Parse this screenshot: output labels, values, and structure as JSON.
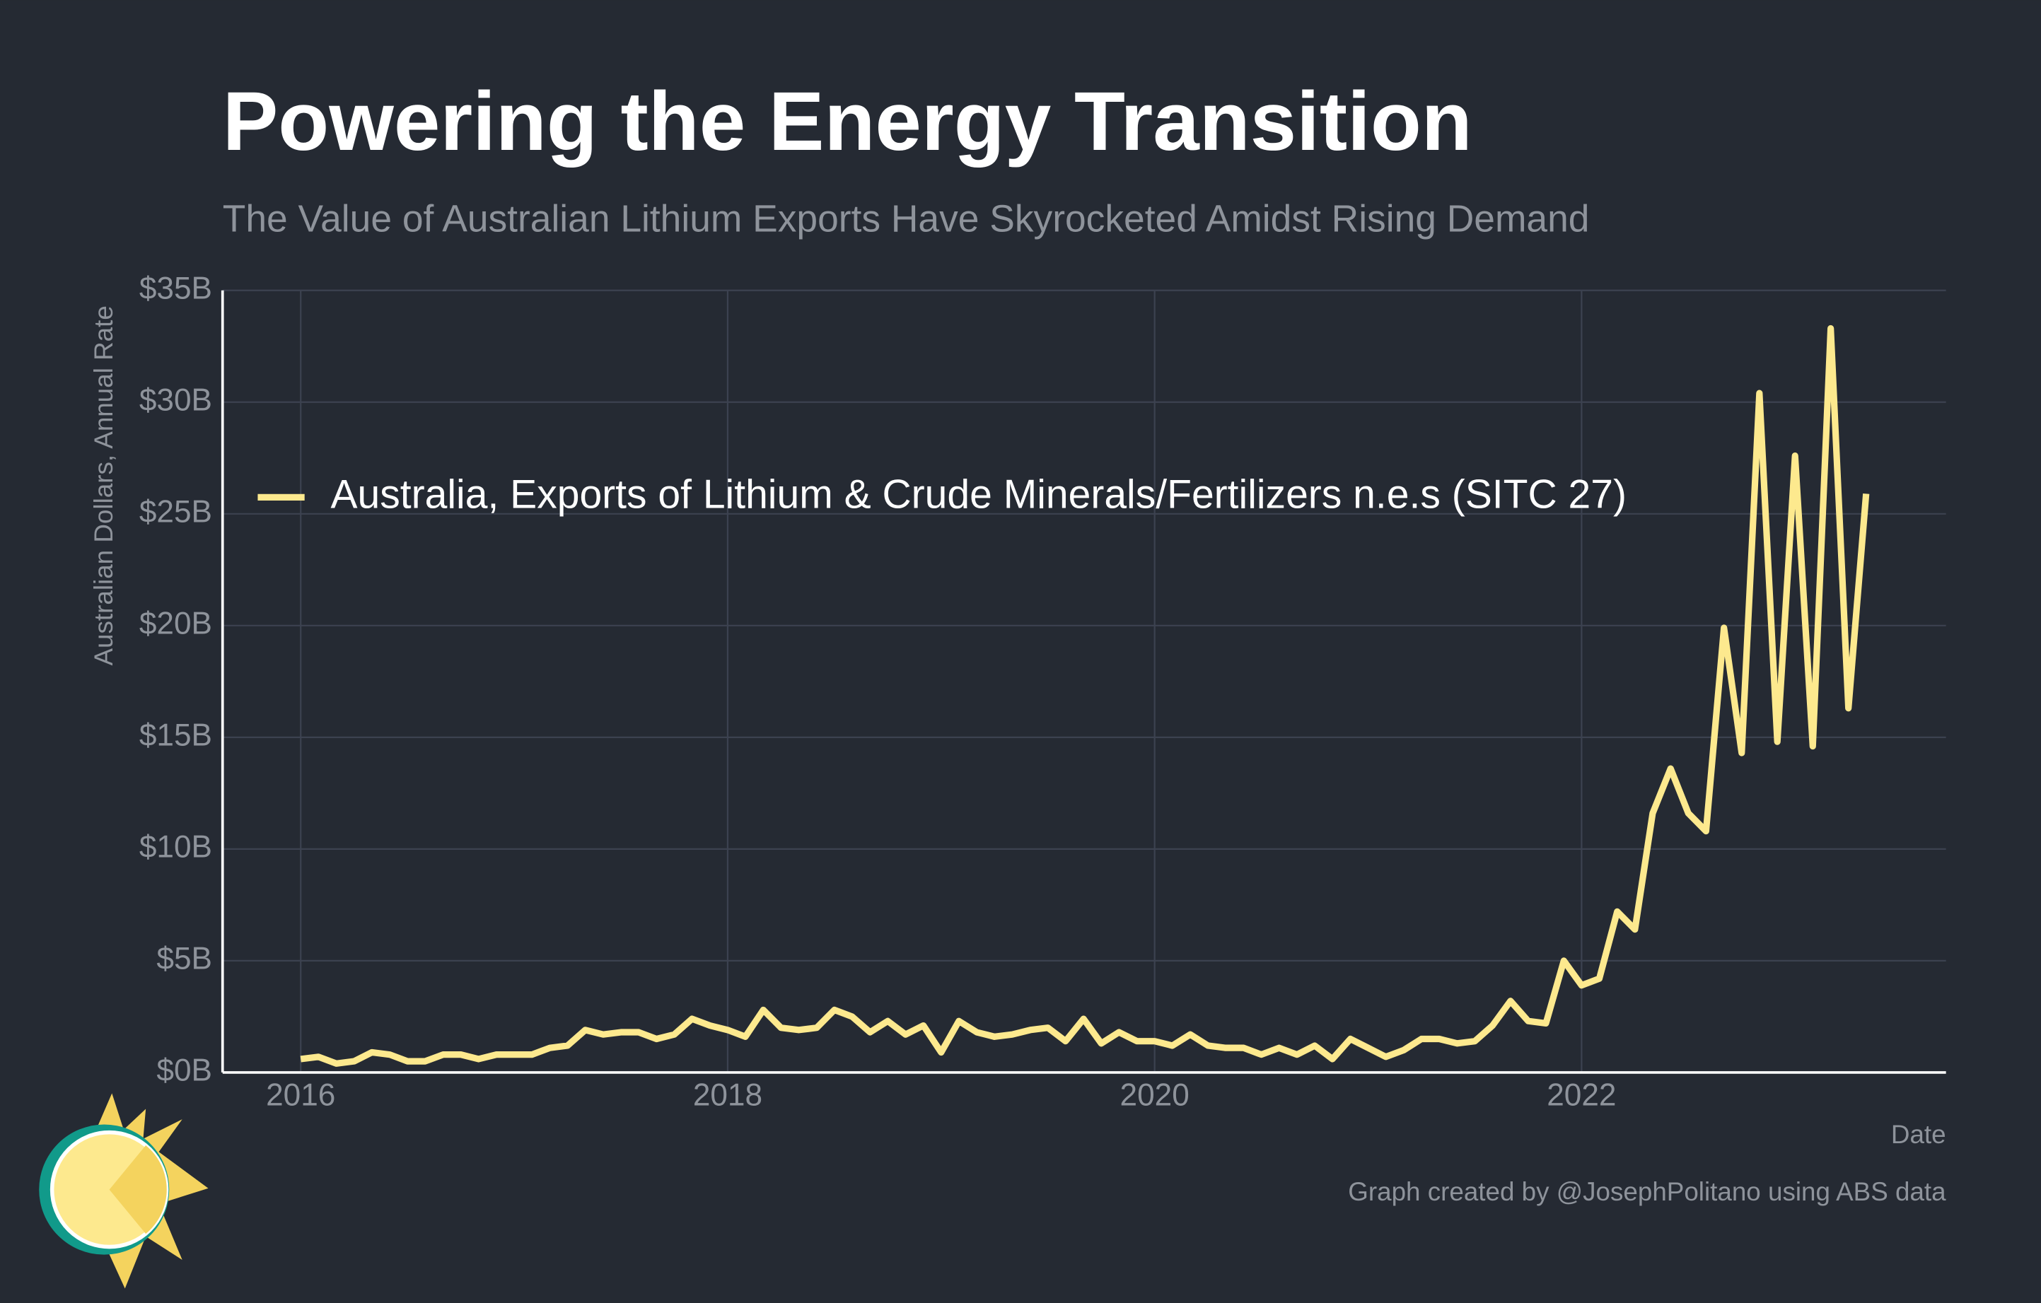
{
  "chart_data": {
    "type": "line",
    "title": "Powering the Energy Transition",
    "subtitle": "The Value of Australian Lithium Exports Have Skyrocketed Amidst Rising Demand",
    "y_label": "Australian Dollars, Annual Rate",
    "x_label": "Date",
    "caption": "Graph created by @JosephPolitano using ABS data",
    "x": [
      2016,
      2016.083,
      2016.167,
      2016.25,
      2016.333,
      2016.417,
      2016.5,
      2016.583,
      2016.667,
      2016.75,
      2016.833,
      2016.917,
      2017,
      2017.083,
      2017.167,
      2017.25,
      2017.333,
      2017.417,
      2017.5,
      2017.583,
      2017.667,
      2017.75,
      2017.833,
      2017.917,
      2018,
      2018.083,
      2018.167,
      2018.25,
      2018.333,
      2018.417,
      2018.5,
      2018.583,
      2018.667,
      2018.75,
      2018.833,
      2018.917,
      2019,
      2019.083,
      2019.167,
      2019.25,
      2019.333,
      2019.417,
      2019.5,
      2019.583,
      2019.667,
      2019.75,
      2019.833,
      2019.917,
      2020,
      2020.083,
      2020.167,
      2020.25,
      2020.333,
      2020.417,
      2020.5,
      2020.583,
      2020.667,
      2020.75,
      2020.833,
      2020.917,
      2021,
      2021.083,
      2021.167,
      2021.25,
      2021.333,
      2021.417,
      2021.5,
      2021.583,
      2021.667,
      2021.75,
      2021.833,
      2021.917,
      2022,
      2022.083,
      2022.167,
      2022.25,
      2022.333,
      2022.417,
      2022.5,
      2022.583,
      2022.667,
      2022.75,
      2022.833,
      2022.917,
      2023,
      2023.083,
      2023.167,
      2023.25,
      2023.333
    ],
    "series": [
      {
        "name": "Australia, Exports of Lithium & Crude Minerals/Fertilizers n.e.s (SITC 27)",
        "color": "#fde98e",
        "values": [
          0.6,
          0.7,
          0.4,
          0.5,
          0.9,
          0.8,
          0.5,
          0.5,
          0.8,
          0.8,
          0.6,
          0.8,
          0.8,
          0.8,
          1.1,
          1.2,
          1.9,
          1.7,
          1.8,
          1.8,
          1.5,
          1.7,
          2.4,
          2.1,
          1.9,
          1.6,
          2.8,
          2.0,
          1.9,
          2.0,
          2.8,
          2.5,
          1.8,
          2.3,
          1.7,
          2.1,
          0.9,
          2.3,
          1.8,
          1.6,
          1.7,
          1.9,
          2.0,
          1.4,
          2.4,
          1.3,
          1.8,
          1.4,
          1.4,
          1.2,
          1.7,
          1.2,
          1.1,
          1.1,
          0.8,
          1.1,
          0.8,
          1.2,
          0.6,
          1.5,
          1.1,
          0.7,
          1.0,
          1.5,
          1.5,
          1.3,
          1.4,
          2.1,
          3.2,
          2.3,
          2.2,
          5.0,
          3.9,
          4.2,
          7.2,
          6.4,
          11.6,
          13.6,
          11.6,
          10.8,
          19.9,
          14.3,
          30.4,
          14.8,
          27.6,
          14.6,
          33.3,
          16.3,
          25.9
        ]
      }
    ],
    "xlim": [
      2015.634,
      2023.707
    ],
    "xticks": [
      2016,
      2018,
      2020,
      2022
    ],
    "ylim": [
      0,
      35
    ],
    "yticks": [
      {
        "value": 0,
        "label": "$0B"
      },
      {
        "value": 5,
        "label": "$5B"
      },
      {
        "value": 10,
        "label": "$10B"
      },
      {
        "value": 15,
        "label": "$15B"
      },
      {
        "value": 20,
        "label": "$20B"
      },
      {
        "value": 25,
        "label": "$25B"
      },
      {
        "value": 30,
        "label": "$30B"
      },
      {
        "value": 35,
        "label": "$35B"
      }
    ],
    "grid": true
  }
}
